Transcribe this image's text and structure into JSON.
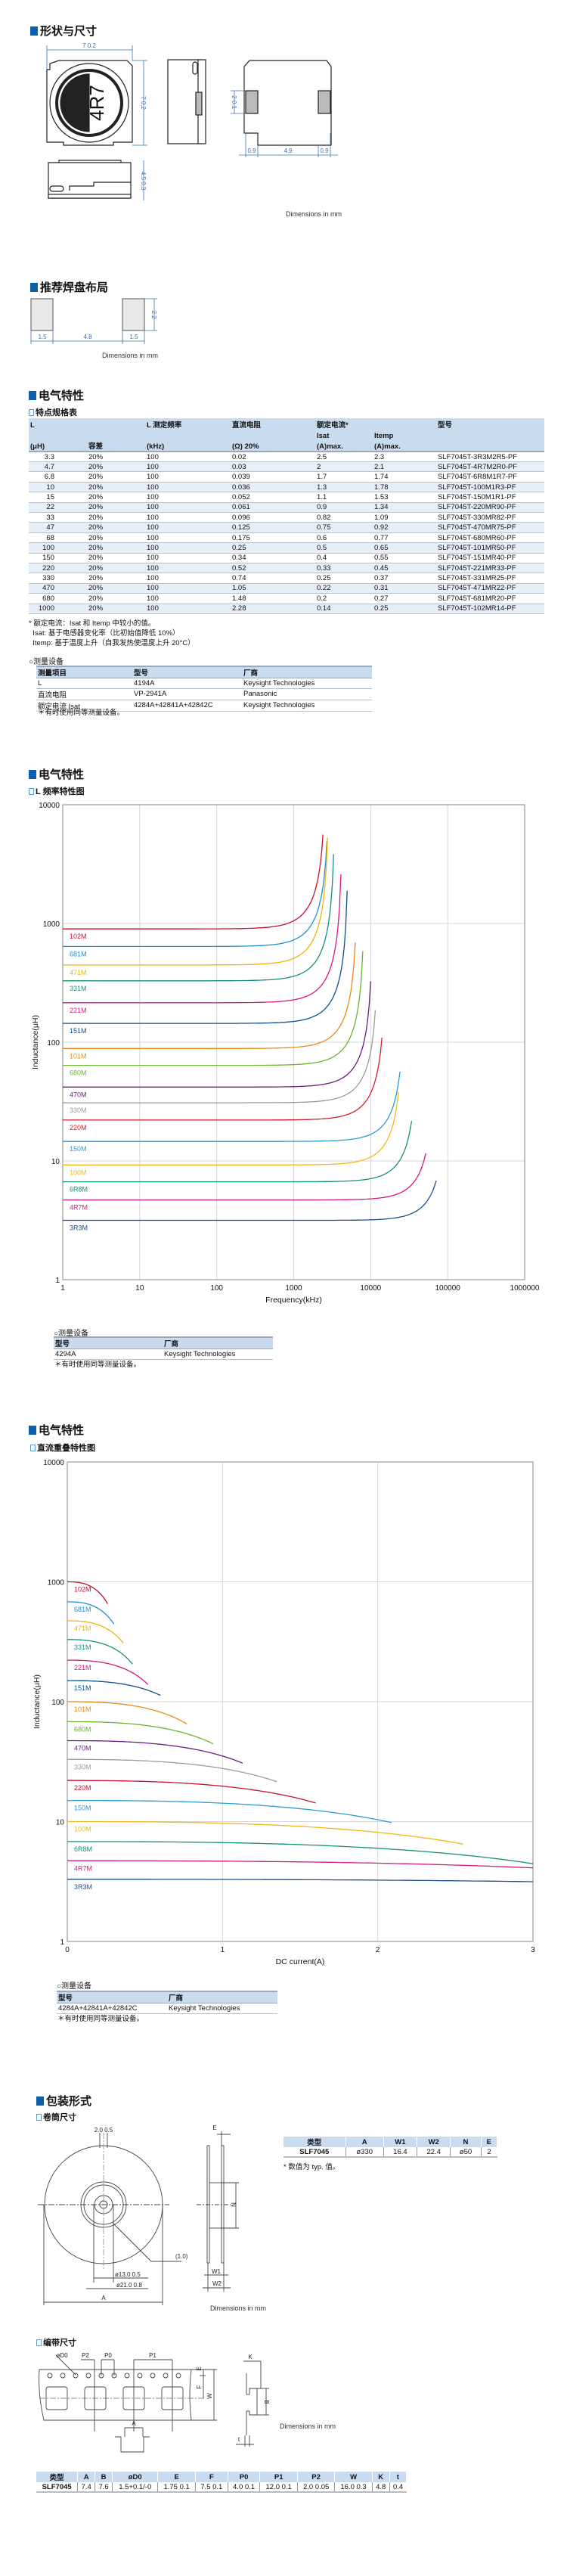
{
  "sections": {
    "shape": "形状与尺寸",
    "land": "推荐焊盘布局",
    "elec1": "电气特性",
    "elec2": "电气特性",
    "elec3": "电气特性",
    "packaging": "包装形式"
  },
  "shape_drawing": {
    "marking": "4R7",
    "width": "7 0.2",
    "height": "7 0.2",
    "thickness": "4.5 0.3",
    "terminal_h": "2 0.1",
    "term_w1": "0.9",
    "term_gap": "4.9",
    "term_w2": "0.9",
    "units": "Dimensions in mm"
  },
  "land_pattern": {
    "pad_w1": "1.5",
    "gap": "4.8",
    "pad_w2": "1.5",
    "pad_h": "2.2",
    "units": "Dimensions in mm"
  },
  "spec_table": {
    "title": "特点规格表",
    "headers": {
      "L": "L",
      "L_unit": "(μH)",
      "tol": "容差",
      "freq": "L 测定频率",
      "freq_unit": "(kHz)",
      "dcr": "直流电阻",
      "dcr_unit": "(Ω)  20%",
      "rated": "额定电流*",
      "isat": "Isat",
      "isat_unit": "(A)max.",
      "itemp": "Itemp",
      "itemp_unit": "(A)max.",
      "part": "型号"
    },
    "rows": [
      [
        "3.3",
        "20%",
        "100",
        "0.02",
        "2.5",
        "2.3",
        "SLF7045T-3R3M2R5-PF"
      ],
      [
        "4.7",
        "20%",
        "100",
        "0.03",
        "2",
        "2.1",
        "SLF7045T-4R7M2R0-PF"
      ],
      [
        "6.8",
        "20%",
        "100",
        "0.039",
        "1.7",
        "1.74",
        "SLF7045T-6R8M1R7-PF"
      ],
      [
        "10",
        "20%",
        "100",
        "0.036",
        "1.3",
        "1.78",
        "SLF7045T-100M1R3-PF"
      ],
      [
        "15",
        "20%",
        "100",
        "0.052",
        "1.1",
        "1.53",
        "SLF7045T-150M1R1-PF"
      ],
      [
        "22",
        "20%",
        "100",
        "0.061",
        "0.9",
        "1.34",
        "SLF7045T-220MR90-PF"
      ],
      [
        "33",
        "20%",
        "100",
        "0.096",
        "0.82",
        "1.09",
        "SLF7045T-330MR82-PF"
      ],
      [
        "47",
        "20%",
        "100",
        "0.125",
        "0.75",
        "0.92",
        "SLF7045T-470MR75-PF"
      ],
      [
        "68",
        "20%",
        "100",
        "0.175",
        "0.6",
        "0.77",
        "SLF7045T-680MR60-PF"
      ],
      [
        "100",
        "20%",
        "100",
        "0.25",
        "0.5",
        "0.65",
        "SLF7045T-101MR50-PF"
      ],
      [
        "150",
        "20%",
        "100",
        "0.34",
        "0.4",
        "0.55",
        "SLF7045T-151MR40-PF"
      ],
      [
        "220",
        "20%",
        "100",
        "0.52",
        "0.33",
        "0.45",
        "SLF7045T-221MR33-PF"
      ],
      [
        "330",
        "20%",
        "100",
        "0.74",
        "0.25",
        "0.37",
        "SLF7045T-331MR25-PF"
      ],
      [
        "470",
        "20%",
        "100",
        "1.05",
        "0.22",
        "0.31",
        "SLF7045T-471MR22-PF"
      ],
      [
        "680",
        "20%",
        "100",
        "1.48",
        "0.2",
        "0.27",
        "SLF7045T-681MR20-PF"
      ],
      [
        "1000",
        "20%",
        "100",
        "2.28",
        "0.14",
        "0.25",
        "SLF7045T-102MR14-PF"
      ]
    ],
    "notes": [
      "* 额定电流：Isat 和 Itemp 中较小的值。",
      "  Isat: 基于电感器变化率（比初始值降低 10%）",
      "  Itemp: 基于温度上升（自我发热使温度上升 20°C）"
    ]
  },
  "measure1": {
    "title": "○测量设备",
    "headers": [
      "测量项目",
      "型号",
      "厂商"
    ],
    "rows": [
      [
        "L",
        "4194A",
        "Keysight Technologies"
      ],
      [
        "直流电阻",
        "VP-2941A",
        "Panasonic"
      ],
      [
        "额定电流 Isat",
        "4284A+42841A+42842C",
        "Keysight Technologies"
      ]
    ],
    "note": "＊有时使用同等测量设备。"
  },
  "measure2": {
    "title": "○测量设备",
    "headers": [
      "型号",
      "厂商"
    ],
    "rows": [
      [
        "4294A",
        "Keysight Technologies"
      ]
    ],
    "note": "＊有时使用同等测量设备。"
  },
  "measure3": {
    "title": "○测量设备",
    "headers": [
      "型号",
      "厂商"
    ],
    "rows": [
      [
        "4284A+42841A+42842C",
        "Keysight Technologies"
      ]
    ],
    "note": "＊有时使用同等测量设备。"
  },
  "chart_data": [
    {
      "type": "line",
      "title": "L 频率特性图",
      "xlabel": "Frequency(kHz)",
      "ylabel": "Inductance(μH)",
      "xscale": "log",
      "yscale": "log",
      "xlim": [
        1,
        1000000
      ],
      "ylim": [
        1,
        10000
      ],
      "xticks": [
        "1",
        "10",
        "100",
        "1000",
        "10000",
        "100000",
        "1000000"
      ],
      "yticks": [
        "1",
        "10",
        "100",
        "1000",
        "10000"
      ],
      "grid": true,
      "series": [
        {
          "name": "102M",
          "color": "#c8102e",
          "L0": 900,
          "peak_freq": 2400,
          "peak_L": 5600
        },
        {
          "name": "681M",
          "color": "#1e90d0",
          "L0": 640,
          "peak_freq": 2700,
          "peak_L": 4900
        },
        {
          "name": "471M",
          "color": "#f0b400",
          "L0": 447,
          "peak_freq": 2750,
          "peak_L": 5300
        },
        {
          "name": "331M",
          "color": "#12907a",
          "L0": 329,
          "peak_freq": 3300,
          "peak_L": 3830
        },
        {
          "name": "221M",
          "color": "#d6187f",
          "L0": 215,
          "peak_freq": 4100,
          "peak_L": 2590
        },
        {
          "name": "151M",
          "color": "#0d4f8f",
          "L0": 144,
          "peak_freq": 4950,
          "peak_L": 1890
        },
        {
          "name": "101M",
          "color": "#e88a1a",
          "L0": 88.5,
          "peak_freq": 6300,
          "peak_L": 694
        },
        {
          "name": "680M",
          "color": "#6bb42f",
          "L0": 63.8,
          "peak_freq": 7900,
          "peak_L": 585
        },
        {
          "name": "470M",
          "color": "#6a1b7f",
          "L0": 41.9,
          "peak_freq": 10000,
          "peak_L": 326
        },
        {
          "name": "330M",
          "color": "#9a9a9a",
          "L0": 30.9,
          "peak_freq": 11500,
          "peak_L": 186
        },
        {
          "name": "220M",
          "color": "#d41f26",
          "L0": 22.1,
          "peak_freq": 14000,
          "peak_L": 109
        },
        {
          "name": "150M",
          "color": "#2a9bd6",
          "L0": 14.6,
          "peak_freq": 24000,
          "peak_L": 56.4
        },
        {
          "name": "100M",
          "color": "#f1b81c",
          "L0": 9.25,
          "peak_freq": 23000,
          "peak_L": 38
        },
        {
          "name": "6R8M",
          "color": "#13907a",
          "L0": 6.67,
          "peak_freq": 34000,
          "peak_L": 21.7
        },
        {
          "name": "4R7M",
          "color": "#d6187f",
          "L0": 4.69,
          "peak_freq": 52000,
          "peak_L": 11.6
        },
        {
          "name": "3R3M",
          "color": "#1a4f8f",
          "L0": 3.16,
          "peak_freq": 71000,
          "peak_L": 6.83
        }
      ]
    },
    {
      "type": "line",
      "title": "直流重叠特性图",
      "xlabel": "DC current(A)",
      "ylabel": "Inductance(μH)",
      "xscale": "linear",
      "yscale": "log",
      "xlim": [
        0,
        3
      ],
      "ylim": [
        1,
        10000
      ],
      "xticks": [
        "0",
        "1",
        "2",
        "3"
      ],
      "yticks": [
        "1",
        "10",
        "100",
        "1000",
        "10000"
      ],
      "grid": true,
      "series": [
        {
          "name": "102M",
          "color": "#c8102e",
          "L0": 1000,
          "end_I": 0.26,
          "end_L": 655
        },
        {
          "name": "681M",
          "color": "#1e90d0",
          "L0": 681,
          "end_I": 0.3,
          "end_L": 444
        },
        {
          "name": "471M",
          "color": "#f0b400",
          "L0": 473,
          "end_I": 0.36,
          "end_L": 309
        },
        {
          "name": "331M",
          "color": "#12907a",
          "L0": 330,
          "end_I": 0.42,
          "end_L": 206
        },
        {
          "name": "221M",
          "color": "#d6187f",
          "L0": 222,
          "end_I": 0.52,
          "end_L": 139
        },
        {
          "name": "151M",
          "color": "#0d4f8f",
          "L0": 150,
          "end_I": 0.6,
          "end_L": 113
        },
        {
          "name": "101M",
          "color": "#e88a1a",
          "L0": 100,
          "end_I": 0.77,
          "end_L": 65.2
        },
        {
          "name": "680M",
          "color": "#6bb42f",
          "L0": 68.1,
          "end_I": 0.94,
          "end_L": 44.5
        },
        {
          "name": "470M",
          "color": "#6a1b7f",
          "L0": 47.3,
          "end_I": 1.13,
          "end_L": 30.7
        },
        {
          "name": "330M",
          "color": "#9a9a9a",
          "L0": 33,
          "end_I": 1.35,
          "end_L": 21.5
        },
        {
          "name": "220M",
          "color": "#c8102e",
          "L0": 22,
          "end_I": 1.6,
          "end_L": 14.3
        },
        {
          "name": "150M",
          "color": "#2a9bd6",
          "L0": 15,
          "end_I": 2.09,
          "end_L": 9.8
        },
        {
          "name": "100M",
          "color": "#f1b81c",
          "L0": 10,
          "end_I": 2.55,
          "end_L": 6.49
        },
        {
          "name": "6R8M",
          "color": "#13907a",
          "L0": 6.81,
          "end_I": 3.0,
          "end_L": 4.45
        },
        {
          "name": "4R7M",
          "color": "#d6187f",
          "L0": 4.71,
          "end_I": 3.0,
          "end_L": 4.11
        },
        {
          "name": "3R3M",
          "color": "#1a4f8f",
          "L0": 3.3,
          "end_I": 3.0,
          "end_L": 3.15
        }
      ]
    }
  ],
  "reel": {
    "title": "卷筒尺寸",
    "slot": "2.0 0.5",
    "E": "E",
    "N": "N",
    "hub_note": "(1.0)",
    "bore": "ø13.0  0.5",
    "hub": "ø21.0  0.8",
    "A": "A",
    "W1": "W1",
    "W2": "W2",
    "units": "Dimensions in mm",
    "table": {
      "headers": [
        "类型",
        "A",
        "W1",
        "W2",
        "N",
        "E"
      ],
      "row": [
        "SLF7045",
        "ø330",
        "16.4",
        "22.4",
        "ø50",
        "2"
      ]
    },
    "note": "* 数值为 typ. 值。"
  },
  "tape": {
    "title": "编带尺寸",
    "labels": {
      "D0": "øD0",
      "P2": "P2",
      "P0": "P0",
      "P1": "P1",
      "E": "E",
      "F": "F",
      "W": "W",
      "K": "K",
      "B": "B",
      "t": "t",
      "A": "A"
    },
    "units": "Dimensions in mm",
    "table": {
      "headers": [
        "类型",
        "A",
        "B",
        "øD0",
        "E",
        "F",
        "P0",
        "P1",
        "P2",
        "W",
        "K",
        "t"
      ],
      "row": [
        "SLF7045",
        "7.4",
        "7.6",
        "1.5+0.1/-0",
        "1.75  0.1",
        "7.5  0.1",
        "4.0  0.1",
        "12.0  0.1",
        "2.0  0.05",
        "16.0  0.3",
        "4.8",
        "0.4"
      ]
    }
  }
}
